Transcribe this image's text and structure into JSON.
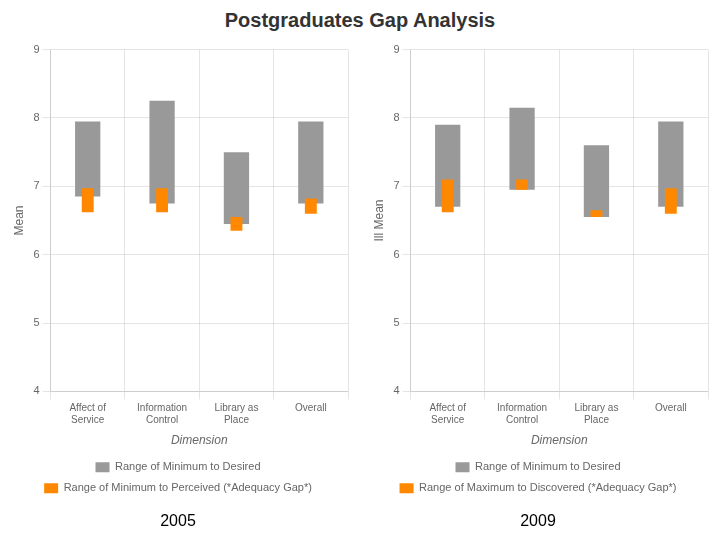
{
  "title": "Postgraduates Gap Analysis",
  "chart_data": [
    {
      "type": "bar",
      "subtitle": "2005",
      "categories": [
        "Affect of\nService",
        "Information\nControl",
        "Library as\nPlace",
        "Overall"
      ],
      "xlabel": "Dimension",
      "ylabel": "Mean",
      "ylim": [
        4,
        9
      ],
      "yticks": [
        4,
        5,
        6,
        7,
        8,
        9
      ],
      "grid": true,
      "legend": "bottom",
      "series": [
        {
          "name": "Range of Minimum to Desired",
          "color": "#999999",
          "values": [
            [
              6.85,
              7.95
            ],
            [
              6.75,
              8.25
            ],
            [
              6.45,
              7.5
            ],
            [
              6.75,
              7.95
            ]
          ]
        },
        {
          "name": "Range of Minimum to Perceived (*Adequacy Gap*)",
          "color": "#ff8800",
          "values": [
            [
              6.62,
              6.97
            ],
            [
              6.62,
              6.97
            ],
            [
              6.35,
              6.55
            ],
            [
              6.6,
              6.82
            ]
          ]
        }
      ]
    },
    {
      "type": "bar",
      "subtitle": "2009",
      "categories": [
        "Affect of\nService",
        "Information\nControl",
        "Library as\nPlace",
        "Overall"
      ],
      "xlabel": "Dimension",
      "ylabel": "Ill Mean",
      "ylim": [
        4,
        9
      ],
      "yticks": [
        4,
        5,
        6,
        7,
        8,
        9
      ],
      "grid": true,
      "legend": "bottom",
      "series": [
        {
          "name": "Range of Minimum to Desired",
          "color": "#999999",
          "values": [
            [
              6.7,
              7.9
            ],
            [
              6.95,
              8.15
            ],
            [
              6.55,
              7.6
            ],
            [
              6.7,
              7.95
            ]
          ]
        },
        {
          "name": "Range of Maximum to Discovered (*Adequacy Gap*)",
          "color": "#ff8800",
          "values": [
            [
              6.62,
              7.1
            ],
            [
              6.95,
              7.1
            ],
            [
              6.55,
              6.65
            ],
            [
              6.6,
              6.97
            ]
          ]
        }
      ]
    }
  ]
}
